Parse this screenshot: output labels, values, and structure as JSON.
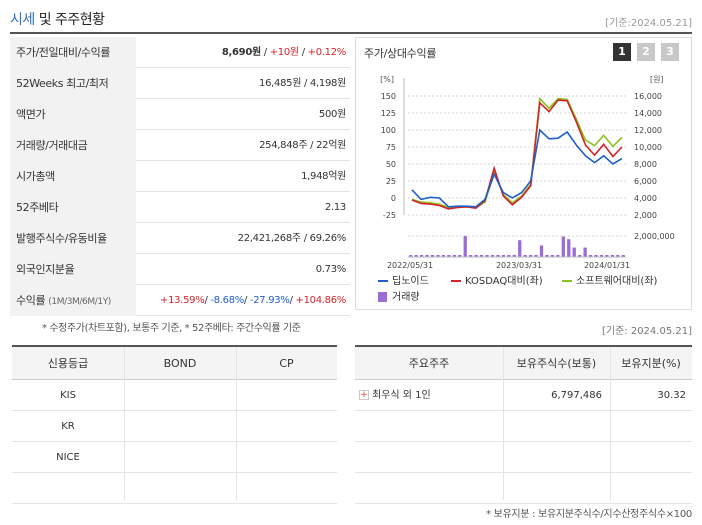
{
  "header": {
    "title_main": "시세",
    "title_rest": " 및 주주현황",
    "date": "[기준:2024.05.21]"
  },
  "quote_table": {
    "rows": [
      {
        "label": "주가/전일대비/수익률",
        "value_price": "8,690원",
        "value_sep1": " / ",
        "value_change": "+10원",
        "value_sep2": " / ",
        "value_rate": "+0.12%"
      },
      {
        "label": "52Weeks 최고/최저",
        "value": "16,485원 / 4,198원"
      },
      {
        "label": "액면가",
        "value": "500원"
      },
      {
        "label": "거래량/거래대금",
        "value": "254,848주 / 22억원"
      },
      {
        "label": "시가총액",
        "value": "1,948억원"
      },
      {
        "label": "52주베타",
        "value": "2.13"
      },
      {
        "label": "발행주식수/유동비율",
        "value": "22,421,268주 / 69.26%"
      },
      {
        "label": "외국인지분율",
        "value": "0.73%"
      },
      {
        "label": "수익률",
        "label_sub": "(1M/3M/6M/1Y)",
        "r1": "+13.59%",
        "r2": "-8.68%",
        "r3": "-27.93%",
        "r4": "+104.86%",
        "sep": "/ "
      }
    ],
    "footnote": "* 수정주가(차트포함), 보통주 기준, * 52주베타: 주간수익률 기준"
  },
  "chart_panel": {
    "title": "주가/상대수익률",
    "tabs": [
      "1",
      "2",
      "3"
    ],
    "active_tab": "1"
  },
  "chart_data": {
    "type": "line",
    "left_axis_unit": "[%]",
    "right_axis_unit": "[원]",
    "left_ticks": [
      "150",
      "125",
      "100",
      "75",
      "50",
      "25",
      "0",
      "-25"
    ],
    "right_ticks": [
      "16,000",
      "14,000",
      "12,000",
      "10,000",
      "8,000",
      "6,000",
      "4,000",
      "2,000"
    ],
    "ylim_left": [
      -25,
      150
    ],
    "ylim_right": [
      2000,
      16000
    ],
    "volume_tick": "2,000,000",
    "x_labels": [
      "2022/05/31",
      "2023/03/31",
      "2024/01/31"
    ],
    "series": [
      {
        "name": "딥노이드",
        "color": "#1f5fc8",
        "values": [
          12,
          -2,
          1,
          0,
          -13,
          -12,
          -12,
          -13,
          -2,
          35,
          8,
          0,
          8,
          25,
          100,
          87,
          88,
          97,
          78,
          62,
          52,
          62,
          50,
          58
        ]
      },
      {
        "name": "KOSDAQ대비(좌)",
        "color": "#d2232a",
        "values": [
          -3,
          -8,
          -9,
          -11,
          -16,
          -14,
          -13,
          -15,
          -4,
          44,
          3,
          -10,
          1,
          18,
          140,
          127,
          144,
          143,
          112,
          78,
          63,
          79,
          61,
          75
        ]
      },
      {
        "name": "소프트웨어대비(좌)",
        "color": "#8dc21f",
        "values": [
          -2,
          -6,
          -7,
          -9,
          -14,
          -14,
          -13,
          -14,
          -6,
          37,
          5,
          -7,
          3,
          20,
          146,
          132,
          146,
          145,
          116,
          85,
          77,
          92,
          76,
          89
        ]
      }
    ],
    "volume": {
      "name": "거래량",
      "color": "#9b6bd6",
      "values": [
        0,
        0,
        0,
        0,
        0,
        0,
        0,
        0,
        0,
        0,
        2000000,
        0,
        0,
        0,
        0,
        0,
        0,
        0,
        0,
        200000,
        1600000,
        0,
        0,
        0,
        1100000,
        0,
        0,
        0,
        1950000,
        1700000,
        900000,
        0,
        900000,
        0,
        0,
        0,
        0,
        0,
        0,
        0
      ]
    },
    "legend": [
      "딥노이드",
      "KOSDAQ대비(좌)",
      "소프트웨어대비(좌)",
      "거래량"
    ],
    "footnote_date": "[기준: 2024.05.21]"
  },
  "credit_table": {
    "headers": [
      "신용등급",
      "BOND",
      "CP"
    ],
    "rows": [
      [
        "KIS",
        "",
        ""
      ],
      [
        "KR",
        "",
        ""
      ],
      [
        "NICE",
        "",
        ""
      ],
      [
        "",
        "",
        ""
      ]
    ]
  },
  "holder_table": {
    "headers": [
      "주요주주",
      "보유주식수(보통)",
      "보유지분(%)"
    ],
    "rows": [
      {
        "name": "최우식 외 1인",
        "shares": "6,797,486",
        "pct": "30.32"
      }
    ],
    "footnote": "* 보유지분 : 보유지분주식수/지수산정주식수×100"
  }
}
